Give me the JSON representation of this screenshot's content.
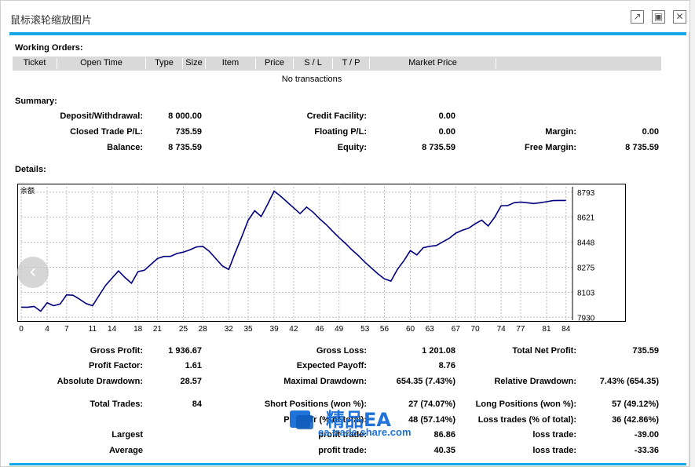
{
  "window": {
    "title": "鼠标滚轮缩放图片",
    "buttons": {
      "popout": "↗",
      "maximize": "▣",
      "close": "✕"
    }
  },
  "working_orders": {
    "title": "Working Orders:",
    "columns": [
      "Ticket",
      "Open Time",
      "Type",
      "Size",
      "Item",
      "Price",
      "S / L",
      "T / P",
      "Market Price"
    ],
    "empty_text": "No transactions"
  },
  "summary": {
    "title": "Summary:",
    "deposit_label": "Deposit/Withdrawal:",
    "deposit": "8 000.00",
    "credit_label": "Credit Facility:",
    "credit": "0.00",
    "closed_pl_label": "Closed Trade P/L:",
    "closed_pl": "735.59",
    "floating_pl_label": "Floating P/L:",
    "floating_pl": "0.00",
    "margin_label": "Margin:",
    "margin": "0.00",
    "balance_label": "Balance:",
    "balance": "8 735.59",
    "equity_label": "Equity:",
    "equity": "8 735.59",
    "free_margin_label": "Free Margin:",
    "free_margin": "8 735.59"
  },
  "details": {
    "title": "Details:"
  },
  "stats": {
    "gross_profit_label": "Gross Profit:",
    "gross_profit": "1 936.67",
    "gross_loss_label": "Gross Loss:",
    "gross_loss": "1 201.08",
    "total_net_profit_label": "Total Net Profit:",
    "total_net_profit": "735.59",
    "profit_factor_label": "Profit Factor:",
    "profit_factor": "1.61",
    "expected_payoff_label": "Expected Payoff:",
    "expected_payoff": "8.76",
    "absolute_drawdown_label": "Absolute Drawdown:",
    "absolute_drawdown": "28.57",
    "maximal_drawdown_label": "Maximal Drawdown:",
    "maximal_drawdown": "654.35 (7.43%)",
    "relative_drawdown_label": "Relative Drawdown:",
    "relative_drawdown": "7.43% (654.35)",
    "total_trades_label": "Total Trades:",
    "total_trades": "84",
    "short_positions_label": "Short Positions (won %):",
    "short_positions": "27 (74.07%)",
    "long_positions_label": "Long Positions (won %):",
    "long_positions": "57 (49.12%)",
    "profit_trades_label": "Profit Tr    (% of total):",
    "profit_trades": "48 (57.14%)",
    "loss_trades_label": "Loss trades (% of total):",
    "loss_trades": "36 (42.86%)",
    "largest_label": "Largest",
    "largest_profit_label": "profit trade:",
    "largest_profit": "86.86",
    "largest_loss_label": "loss trade:",
    "largest_loss": "-39.00",
    "average_label": "Average",
    "average_profit_label": "profit trade:",
    "average_profit": "40.35",
    "average_loss_label": "loss trade:",
    "average_loss": "-33.36"
  },
  "watermark": {
    "brand": "精品EA",
    "site": "ea.trade.share.com"
  },
  "navigation": {
    "prev_label": "‹"
  },
  "colors": {
    "accent": "#16a8e6",
    "line": "#000080",
    "grid": "#bdbdbd",
    "watermark": "#1f73d9"
  },
  "chart_data": {
    "type": "line",
    "title": "余额",
    "xlabel": "",
    "ylabel": "",
    "x_ticks": [
      0,
      4,
      7,
      11,
      14,
      18,
      21,
      25,
      28,
      32,
      35,
      39,
      42,
      46,
      49,
      53,
      56,
      60,
      63,
      67,
      70,
      74,
      77,
      81,
      84
    ],
    "y_ticks": [
      7930,
      8103,
      8275,
      8448,
      8621,
      8793
    ],
    "xlim": [
      0,
      85
    ],
    "ylim": [
      7910,
      8830
    ],
    "series": [
      {
        "name": "余额",
        "points": [
          [
            0,
            8000
          ],
          [
            1,
            8000
          ],
          [
            2,
            8005
          ],
          [
            3,
            7972
          ],
          [
            4,
            8030
          ],
          [
            5,
            8010
          ],
          [
            6,
            8022
          ],
          [
            7,
            8085
          ],
          [
            8,
            8082
          ],
          [
            9,
            8055
          ],
          [
            10,
            8025
          ],
          [
            11,
            8010
          ],
          [
            12,
            8080
          ],
          [
            13,
            8150
          ],
          [
            14,
            8200
          ],
          [
            15,
            8250
          ],
          [
            16,
            8205
          ],
          [
            17,
            8165
          ],
          [
            18,
            8245
          ],
          [
            19,
            8255
          ],
          [
            20,
            8295
          ],
          [
            21,
            8335
          ],
          [
            22,
            8350
          ],
          [
            23,
            8350
          ],
          [
            24,
            8370
          ],
          [
            25,
            8380
          ],
          [
            26,
            8395
          ],
          [
            27,
            8415
          ],
          [
            28,
            8420
          ],
          [
            29,
            8385
          ],
          [
            30,
            8335
          ],
          [
            31,
            8285
          ],
          [
            32,
            8260
          ],
          [
            33,
            8375
          ],
          [
            34,
            8485
          ],
          [
            35,
            8600
          ],
          [
            36,
            8665
          ],
          [
            37,
            8625
          ],
          [
            38,
            8710
          ],
          [
            39,
            8800
          ],
          [
            40,
            8765
          ],
          [
            41,
            8725
          ],
          [
            42,
            8685
          ],
          [
            43,
            8645
          ],
          [
            44,
            8690
          ],
          [
            45,
            8655
          ],
          [
            46,
            8610
          ],
          [
            47,
            8570
          ],
          [
            48,
            8525
          ],
          [
            49,
            8480
          ],
          [
            50,
            8440
          ],
          [
            51,
            8395
          ],
          [
            52,
            8355
          ],
          [
            53,
            8310
          ],
          [
            54,
            8270
          ],
          [
            55,
            8230
          ],
          [
            56,
            8195
          ],
          [
            57,
            8180
          ],
          [
            58,
            8260
          ],
          [
            59,
            8320
          ],
          [
            60,
            8390
          ],
          [
            61,
            8360
          ],
          [
            62,
            8410
          ],
          [
            63,
            8420
          ],
          [
            64,
            8425
          ],
          [
            65,
            8450
          ],
          [
            66,
            8475
          ],
          [
            67,
            8510
          ],
          [
            68,
            8530
          ],
          [
            69,
            8545
          ],
          [
            70,
            8575
          ],
          [
            71,
            8600
          ],
          [
            72,
            8560
          ],
          [
            73,
            8620
          ],
          [
            74,
            8700
          ],
          [
            75,
            8700
          ],
          [
            76,
            8720
          ],
          [
            77,
            8725
          ],
          [
            78,
            8720
          ],
          [
            79,
            8715
          ],
          [
            80,
            8720
          ],
          [
            81,
            8727
          ],
          [
            82,
            8735
          ],
          [
            83,
            8736
          ],
          [
            84,
            8735.59
          ]
        ]
      }
    ]
  }
}
